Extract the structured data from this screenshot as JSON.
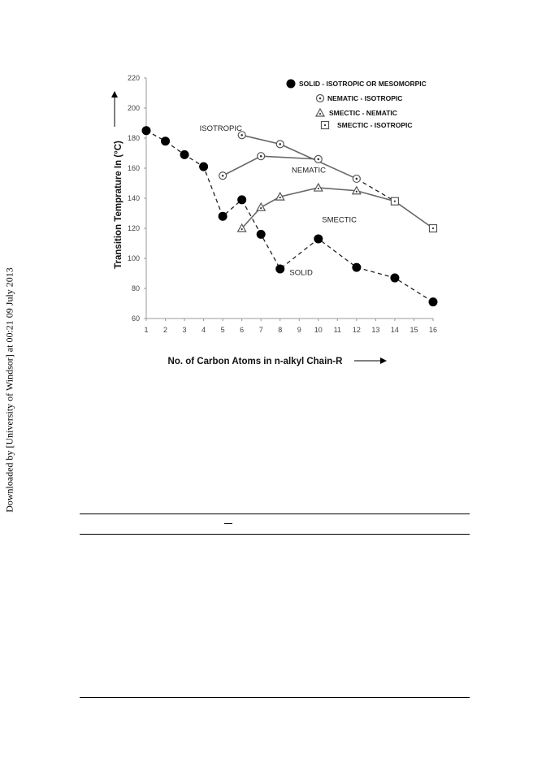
{
  "sidebar": {
    "text": "Downloaded by [University of Windsor] at 00:21 09 July 2013"
  },
  "chart_data": {
    "type": "scatter",
    "xlabel": "No. of Carbon Atoms in n-alkyl Chain-R",
    "ylabel": "Transition Temprature In (°C)",
    "xlim": [
      1,
      16
    ],
    "ylim": [
      60,
      220
    ],
    "x_ticks": [
      1,
      2,
      3,
      4,
      5,
      6,
      7,
      8,
      9,
      10,
      11,
      12,
      13,
      14,
      15,
      16
    ],
    "y_ticks": [
      60,
      80,
      100,
      120,
      140,
      160,
      180,
      200,
      220
    ],
    "grid": false,
    "legend_position": "top-right",
    "series": [
      {
        "name": "SOLID - ISOTROPIC OR MESOMORPIC",
        "marker": "filled-circle",
        "x": [
          1,
          2,
          3,
          4,
          5,
          6,
          7,
          8,
          10,
          12,
          14,
          16
        ],
        "y": [
          185,
          178,
          169,
          161,
          128,
          139,
          116,
          93,
          113,
          94,
          87,
          71
        ]
      },
      {
        "name": "NEMATIC - ISOTROPIC",
        "marker": "dotted-circle",
        "x": [
          5,
          6,
          7,
          8,
          10,
          12
        ],
        "y": [
          155,
          182,
          168,
          176,
          166,
          153
        ]
      },
      {
        "name": "SMECTIC - NEMATIC",
        "marker": "triangle",
        "x": [
          6,
          7,
          8,
          10,
          12
        ],
        "y": [
          120,
          134,
          141,
          147,
          145
        ]
      },
      {
        "name": "SMECTIC - ISOTROPIC",
        "marker": "square",
        "x": [
          14,
          16
        ],
        "y": [
          138,
          120
        ]
      }
    ],
    "annotations": [
      {
        "text": "ISOTROPIC",
        "x": 4.9,
        "y": 185
      },
      {
        "text": "NEMATIC",
        "x": 9.5,
        "y": 157
      },
      {
        "text": "SMECTIC",
        "x": 11.1,
        "y": 124
      },
      {
        "text": "SOLID",
        "x": 9.1,
        "y": 89
      }
    ]
  },
  "table": {
    "header_mark": "–"
  }
}
